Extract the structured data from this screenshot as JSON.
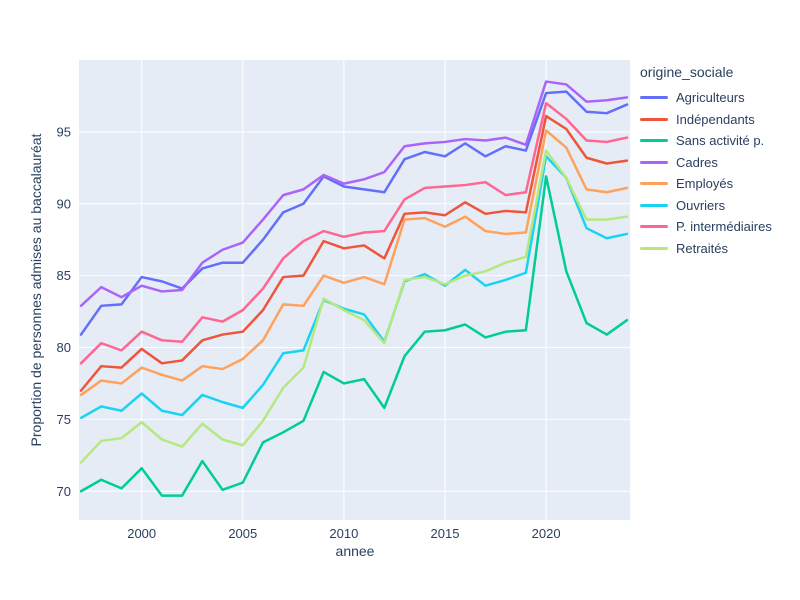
{
  "chart_data": {
    "type": "line",
    "title": "",
    "xlabel": "annee",
    "ylabel": "Proportion de personnes admises au baccalauréat",
    "legend_title": "origine_sociale",
    "legend_position": "right",
    "grid": true,
    "plot_bg": "#E5ECF6",
    "paper_bg": "#FFFFFF",
    "grid_color": "#FFFFFF",
    "text_color": "#2A3F5F",
    "xticks": [
      2000,
      2005,
      2010,
      2015,
      2020
    ],
    "yticks": [
      70,
      75,
      80,
      85,
      90,
      95
    ],
    "xlim": [
      1996.9,
      2024.15
    ],
    "ylim": [
      68,
      100
    ],
    "x": [
      1997,
      1998,
      1999,
      2000,
      2001,
      2002,
      2003,
      2004,
      2005,
      2006,
      2007,
      2008,
      2009,
      2010,
      2011,
      2012,
      2013,
      2014,
      2015,
      2016,
      2017,
      2018,
      2019,
      2020,
      2021,
      2022,
      2023,
      2024
    ],
    "series": [
      {
        "name": "Agriculteurs",
        "color": "#636EFA",
        "values": [
          80.9,
          82.9,
          83.0,
          84.9,
          84.6,
          84.1,
          85.5,
          85.9,
          85.9,
          87.5,
          89.4,
          90.0,
          91.9,
          91.2,
          91.0,
          90.8,
          93.1,
          93.6,
          93.3,
          94.2,
          93.3,
          94.0,
          93.7,
          97.7,
          97.8,
          96.4,
          96.3,
          96.9
        ]
      },
      {
        "name": "Indépendants",
        "color": "#EF553B",
        "values": [
          77.0,
          78.7,
          78.6,
          79.9,
          78.9,
          79.1,
          80.5,
          80.9,
          81.1,
          82.6,
          84.9,
          85.0,
          87.4,
          86.9,
          87.1,
          86.2,
          89.3,
          89.4,
          89.2,
          90.1,
          89.3,
          89.5,
          89.4,
          96.1,
          95.2,
          93.2,
          92.8,
          93.0
        ]
      },
      {
        "name": "Sans activité p.",
        "color": "#00CC96",
        "values": [
          70.0,
          70.8,
          70.2,
          71.6,
          69.7,
          69.7,
          72.1,
          70.1,
          70.6,
          73.4,
          74.1,
          74.9,
          78.3,
          77.5,
          77.8,
          75.8,
          79.4,
          81.1,
          81.2,
          81.6,
          80.7,
          81.1,
          81.2,
          91.9,
          85.3,
          81.7,
          80.9,
          81.9
        ]
      },
      {
        "name": "Cadres",
        "color": "#AB63FA",
        "values": [
          82.9,
          84.2,
          83.5,
          84.3,
          83.9,
          84.0,
          85.9,
          86.8,
          87.3,
          88.9,
          90.6,
          91.0,
          92.0,
          91.4,
          91.7,
          92.2,
          94.0,
          94.2,
          94.3,
          94.5,
          94.4,
          94.6,
          94.1,
          98.5,
          98.3,
          97.1,
          97.2,
          97.4
        ]
      },
      {
        "name": "Employés",
        "color": "#FFA15A",
        "values": [
          76.7,
          77.7,
          77.5,
          78.6,
          78.1,
          77.7,
          78.7,
          78.5,
          79.2,
          80.5,
          83.0,
          82.9,
          85.0,
          84.5,
          84.9,
          84.4,
          88.9,
          89.0,
          88.4,
          89.1,
          88.1,
          87.9,
          88.0,
          95.1,
          93.9,
          91.0,
          90.8,
          91.1
        ]
      },
      {
        "name": "Ouvriers",
        "color": "#19D3F3",
        "values": [
          75.1,
          75.9,
          75.6,
          76.8,
          75.6,
          75.3,
          76.7,
          76.2,
          75.8,
          77.4,
          79.6,
          79.8,
          83.3,
          82.7,
          82.3,
          80.4,
          84.6,
          85.1,
          84.3,
          85.4,
          84.3,
          84.7,
          85.2,
          93.3,
          91.8,
          88.3,
          87.6,
          87.9
        ]
      },
      {
        "name": "P. intermédiaires",
        "color": "#FF6692",
        "values": [
          78.9,
          80.3,
          79.8,
          81.1,
          80.5,
          80.4,
          82.1,
          81.8,
          82.6,
          84.1,
          86.2,
          87.4,
          88.1,
          87.7,
          88.0,
          88.1,
          90.3,
          91.1,
          91.2,
          91.3,
          91.5,
          90.6,
          90.8,
          97.0,
          95.9,
          94.4,
          94.3,
          94.6
        ]
      },
      {
        "name": "Retraités",
        "color": "#B6E880",
        "values": [
          72.0,
          73.5,
          73.7,
          74.8,
          73.6,
          73.1,
          74.7,
          73.6,
          73.2,
          74.9,
          77.2,
          78.6,
          83.4,
          82.6,
          81.9,
          80.3,
          84.7,
          84.9,
          84.4,
          85.0,
          85.3,
          85.9,
          86.3,
          93.7,
          91.8,
          88.9,
          88.9,
          89.1
        ]
      }
    ]
  }
}
